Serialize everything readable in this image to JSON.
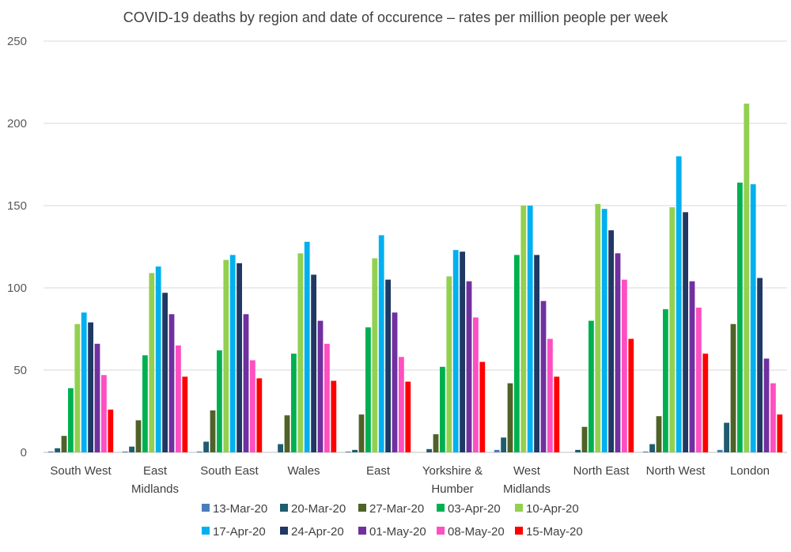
{
  "chart_data": {
    "type": "bar",
    "title": "COVID-19 deaths by region and date of occurence – rates per million people per week",
    "xlabel": "",
    "ylabel": "",
    "ylim": [
      0,
      250
    ],
    "yticks": [
      "0",
      "50",
      "100",
      "150",
      "200",
      "250"
    ],
    "grid": true,
    "legend_position": "bottom",
    "categories": [
      [
        "South West"
      ],
      [
        "East",
        "Midlands"
      ],
      [
        "South East"
      ],
      [
        "Wales"
      ],
      [
        "East"
      ],
      [
        "Yorkshire &",
        "Humber"
      ],
      [
        "West",
        "Midlands"
      ],
      [
        "North East"
      ],
      [
        "North West"
      ],
      [
        "London"
      ]
    ],
    "series": [
      {
        "name": "13-Mar-20",
        "color": "#4a7ebb",
        "values": [
          0.5,
          0.5,
          0.5,
          0,
          0.5,
          0,
          1.5,
          0,
          0.5,
          1.5
        ]
      },
      {
        "name": "20-Mar-20",
        "color": "#1f5c70",
        "values": [
          2.5,
          3.5,
          6.5,
          5,
          1.5,
          2,
          9,
          1.5,
          5,
          18
        ]
      },
      {
        "name": "27-Mar-20",
        "color": "#4f6228",
        "values": [
          10,
          19.5,
          25.5,
          22.5,
          23,
          11,
          42,
          15.5,
          22,
          78
        ]
      },
      {
        "name": "03-Apr-20",
        "color": "#00b050",
        "values": [
          39,
          59,
          62,
          60,
          76,
          52,
          120,
          80,
          87,
          164
        ]
      },
      {
        "name": "10-Apr-20",
        "color": "#92d050",
        "values": [
          78,
          109,
          117,
          121,
          118,
          107,
          150,
          151,
          149,
          212
        ]
      },
      {
        "name": "17-Apr-20",
        "color": "#00b0f0",
        "values": [
          85,
          113,
          120,
          128,
          132,
          123,
          150,
          148,
          180,
          163
        ]
      },
      {
        "name": "24-Apr-20",
        "color": "#1f3864",
        "values": [
          79,
          97,
          115,
          108,
          105,
          122,
          120,
          135,
          146,
          106
        ]
      },
      {
        "name": "01-May-20",
        "color": "#7030a0",
        "values": [
          66,
          84,
          84,
          80,
          85,
          104,
          92,
          121,
          104,
          57
        ]
      },
      {
        "name": "08-May-20",
        "color": "#ff4fc1",
        "values": [
          47,
          65,
          56,
          66,
          58,
          82,
          69,
          105,
          88,
          42
        ]
      },
      {
        "name": "15-May-20",
        "color": "#ff0000",
        "values": [
          26,
          46,
          45,
          43.5,
          43,
          55,
          46,
          69,
          60,
          23
        ]
      }
    ]
  }
}
